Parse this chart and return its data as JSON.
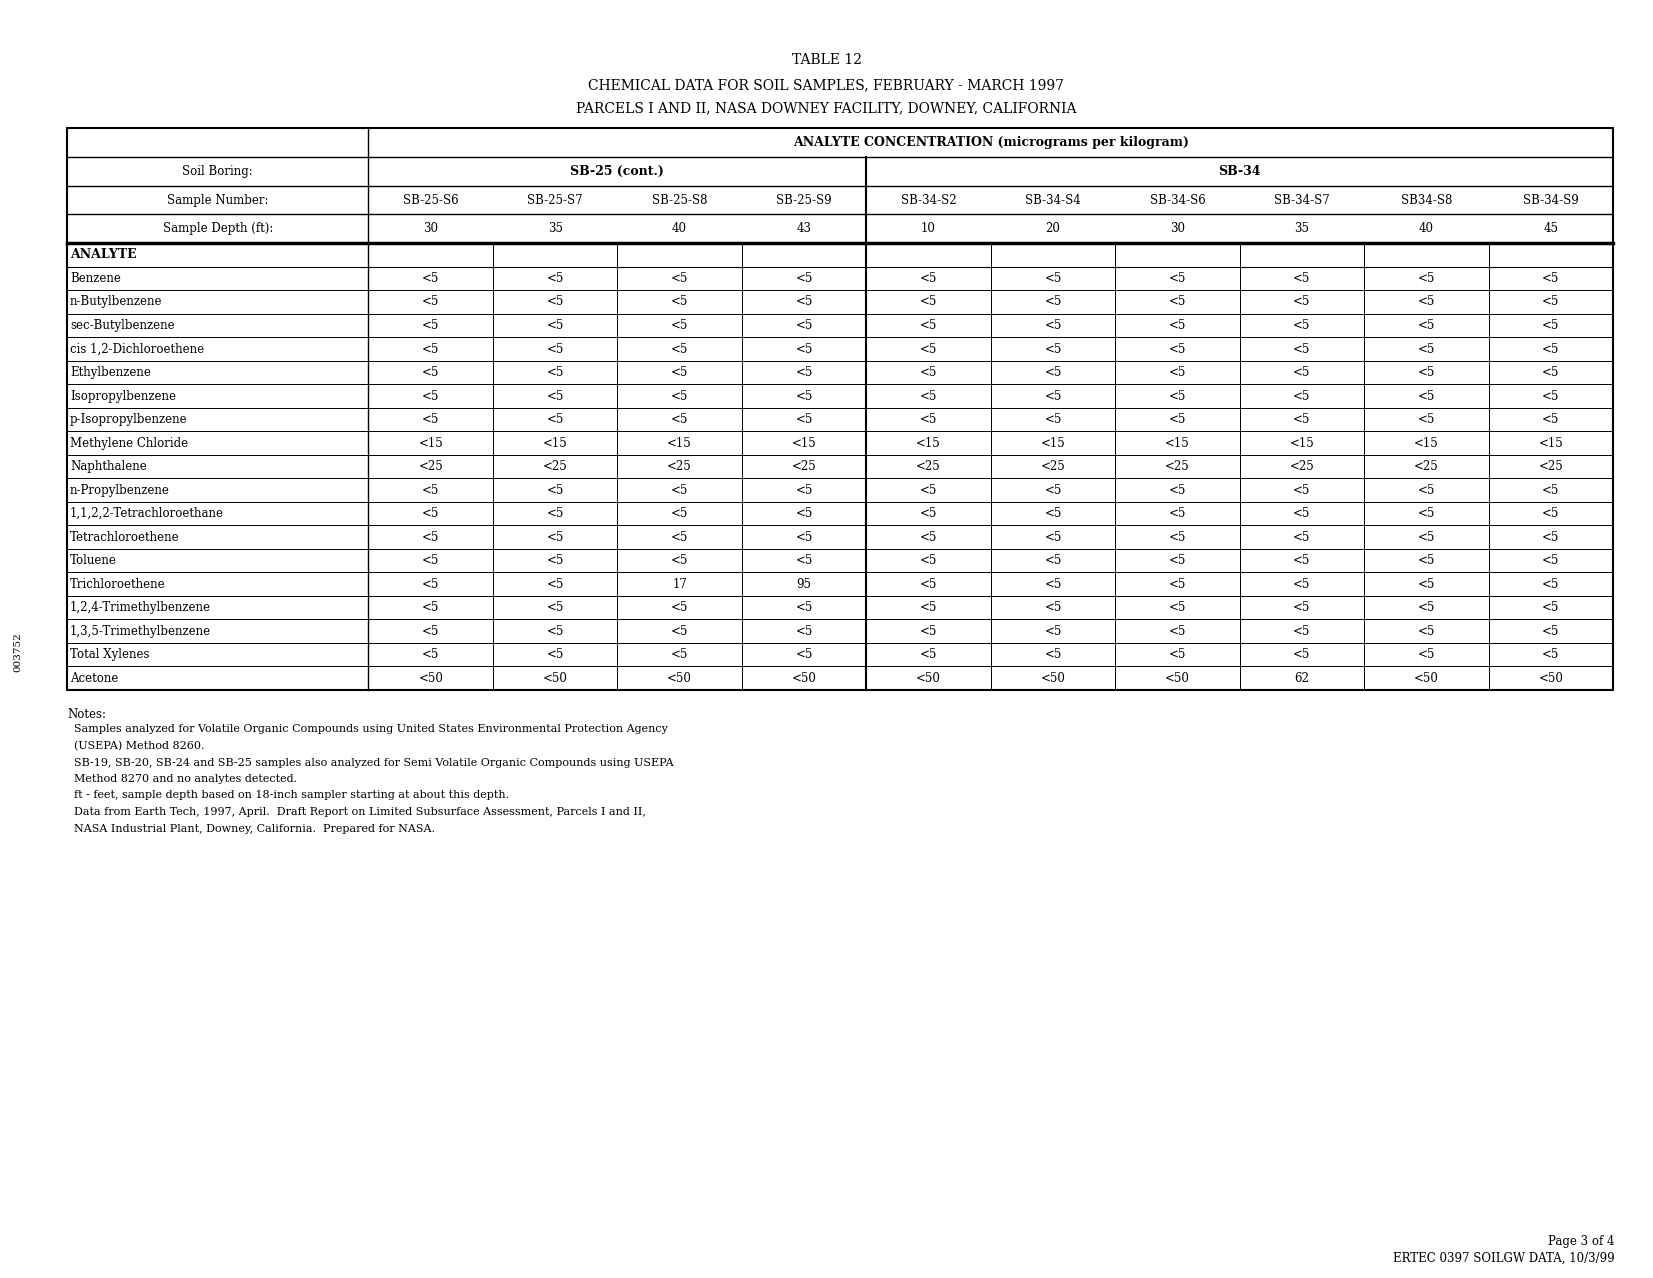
{
  "title_line1": "TABLE 12",
  "title_line2": "CHEMICAL DATA FOR SOIL SAMPLES, FEBRUARY - MARCH 1997",
  "title_line3": "PARCELS I AND II, NASA DOWNEY FACILITY, DOWNEY, CALIFORNIA",
  "header_row1_label": "ANALYTE CONCENTRATION (micrograms per kilogram)",
  "soil_boring_label": "Soil Boring:",
  "sample_number_label": "Sample Number:",
  "sample_depth_label": "Sample Depth (ft):",
  "sb25_cont_label": "SB-25 (cont.)",
  "sb34_label": "SB-34",
  "col_headers": [
    "SB-25-S6",
    "SB-25-S7",
    "SB-25-S8",
    "SB-25-S9",
    "SB-34-S2",
    "SB-34-S4",
    "SB-34-S6",
    "SB-34-S7",
    "SB34-S8",
    "SB-34-S9"
  ],
  "col_depths": [
    "30",
    "35",
    "40",
    "43",
    "10",
    "20",
    "30",
    "35",
    "40",
    "45"
  ],
  "analyte_label": "ANALYTE",
  "analytes": [
    "Benzene",
    "n-Butylbenzene",
    "sec-Butylbenzene",
    "cis 1,2-Dichloroethene",
    "Ethylbenzene",
    "Isopropylbenzene",
    "p-Isopropylbenzene",
    "Methylene Chloride",
    "Naphthalene",
    "n-Propylbenzene",
    "1,1,2,2-Tetrachloroethane",
    "Tetrachloroethene",
    "Toluene",
    "Trichloroethene",
    "1,2,4-Trimethylbenzene",
    "1,3,5-Trimethylbenzene",
    "Total Xylenes",
    "Acetone"
  ],
  "data": [
    [
      "<5",
      "<5",
      "<5",
      "<5",
      "<5",
      "<5",
      "<5",
      "<5",
      "<5",
      "<5"
    ],
    [
      "<5",
      "<5",
      "<5",
      "<5",
      "<5",
      "<5",
      "<5",
      "<5",
      "<5",
      "<5"
    ],
    [
      "<5",
      "<5",
      "<5",
      "<5",
      "<5",
      "<5",
      "<5",
      "<5",
      "<5",
      "<5"
    ],
    [
      "<5",
      "<5",
      "<5",
      "<5",
      "<5",
      "<5",
      "<5",
      "<5",
      "<5",
      "<5"
    ],
    [
      "<5",
      "<5",
      "<5",
      "<5",
      "<5",
      "<5",
      "<5",
      "<5",
      "<5",
      "<5"
    ],
    [
      "<5",
      "<5",
      "<5",
      "<5",
      "<5",
      "<5",
      "<5",
      "<5",
      "<5",
      "<5"
    ],
    [
      "<5",
      "<5",
      "<5",
      "<5",
      "<5",
      "<5",
      "<5",
      "<5",
      "<5",
      "<5"
    ],
    [
      "<15",
      "<15",
      "<15",
      "<15",
      "<15",
      "<15",
      "<15",
      "<15",
      "<15",
      "<15"
    ],
    [
      "<25",
      "<25",
      "<25",
      "<25",
      "<25",
      "<25",
      "<25",
      "<25",
      "<25",
      "<25"
    ],
    [
      "<5",
      "<5",
      "<5",
      "<5",
      "<5",
      "<5",
      "<5",
      "<5",
      "<5",
      "<5"
    ],
    [
      "<5",
      "<5",
      "<5",
      "<5",
      "<5",
      "<5",
      "<5",
      "<5",
      "<5",
      "<5"
    ],
    [
      "<5",
      "<5",
      "<5",
      "<5",
      "<5",
      "<5",
      "<5",
      "<5",
      "<5",
      "<5"
    ],
    [
      "<5",
      "<5",
      "<5",
      "<5",
      "<5",
      "<5",
      "<5",
      "<5",
      "<5",
      "<5"
    ],
    [
      "<5",
      "<5",
      "17",
      "95",
      "<5",
      "<5",
      "<5",
      "<5",
      "<5",
      "<5"
    ],
    [
      "<5",
      "<5",
      "<5",
      "<5",
      "<5",
      "<5",
      "<5",
      "<5",
      "<5",
      "<5"
    ],
    [
      "<5",
      "<5",
      "<5",
      "<5",
      "<5",
      "<5",
      "<5",
      "<5",
      "<5",
      "<5"
    ],
    [
      "<5",
      "<5",
      "<5",
      "<5",
      "<5",
      "<5",
      "<5",
      "<5",
      "<5",
      "<5"
    ],
    [
      "<50",
      "<50",
      "<50",
      "<50",
      "<50",
      "<50",
      "<50",
      "62",
      "<50",
      "<50"
    ]
  ],
  "notes_title": "Notes:",
  "notes_lines": [
    "  Samples analyzed for Volatile Organic Compounds using United States Environmental Protection Agency",
    "  (USEPA) Method 8260.",
    "  SB-19, SB-20, SB-24 and SB-25 samples also analyzed for Semi Volatile Organic Compounds using USEPA",
    "  Method 8270 and no analytes detected.",
    "  ft - feet, sample depth based on 18-inch sampler starting at about this depth.",
    "  Data from Earth Tech, 1997, April.  Draft Report on Limited Subsurface Assessment, Parcels I and II,",
    "  NASA Industrial Plant, Downey, California.  Prepared for NASA."
  ],
  "footer_right1": "Page 3 of 4",
  "footer_right2": "ERTEC 0397 SOILGW DATA, 10/3/99",
  "left_margin_text": "003752",
  "bg_color": "#ffffff",
  "text_color": "#000000"
}
